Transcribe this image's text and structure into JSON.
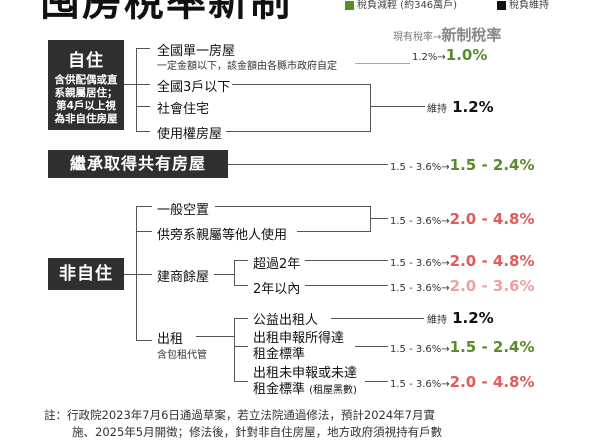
{
  "title": "囤房稅率新制",
  "legend": {
    "green_label": "稅負減輕 (約346萬戶)",
    "black_label": "稅負維持",
    "green_color": "#5a8a2c",
    "black_color": "#111111"
  },
  "header": {
    "old_label": "現有稅率→",
    "new_label": "新制稅率"
  },
  "self_use": {
    "title": "自住",
    "note_lines": [
      "含供配偶或直",
      "系親屬居住；",
      "第4戶以上視",
      "為非自住房屋"
    ],
    "items": [
      {
        "label": "全國單一房屋",
        "sub": "一定金額以下，該金額由各縣市政府自定",
        "old": "1.2%",
        "arrow": "→",
        "new": "1.0%"
      },
      {
        "label": "全國3戶以下"
      },
      {
        "label": "社會住宅"
      },
      {
        "label": "使用權房屋"
      }
    ],
    "group_rate": {
      "old": "維持",
      "new": "1.2%"
    }
  },
  "inherit": {
    "title": "繼承取得共有房屋",
    "old": "1.5 - 3.6%",
    "arrow": "→",
    "new": "1.5 - 2.4%"
  },
  "non_self": {
    "title": "非自住",
    "vacant": {
      "label": "一般空置"
    },
    "relatives": {
      "label": "供旁系親屬等他人使用"
    },
    "vacant_rate": {
      "old": "1.5 - 3.6%",
      "arrow": "→",
      "new": "2.0 - 4.8%"
    },
    "builder": {
      "label": "建商餘屋",
      "over2": {
        "label": "超過2年",
        "old": "1.5 - 3.6%",
        "arrow": "→",
        "new": "2.0 - 4.8%"
      },
      "within2": {
        "label": "2年以內",
        "old": "1.5 - 3.6%",
        "arrow": "→",
        "new": "2.0 - 3.6%"
      }
    },
    "rental": {
      "label": "出租",
      "sub": "含包租代管",
      "public": {
        "label": "公益出租人",
        "old": "維持",
        "new": "1.2%"
      },
      "declared": {
        "label_line1": "出租申報所得達",
        "label_line2": "租金標準",
        "old": "1.5 - 3.6%",
        "arrow": "→",
        "new": "1.5 - 2.4%"
      },
      "undeclared": {
        "label_line1": "出租未申報或未達",
        "label_line2": "租金標準",
        "label_sub": "(租屋黑數)",
        "old": "1.5 - 3.6%",
        "arrow": "→",
        "new": "2.0 - 4.8%"
      }
    }
  },
  "footnote": {
    "line1": "註：行政院2023年7月6日通過草案，若立法院通過修法，預計2024年7月實",
    "line2": "施、2025年5月開徵；修法後，針對非自住房屋，地方政府須視持有戶數"
  }
}
